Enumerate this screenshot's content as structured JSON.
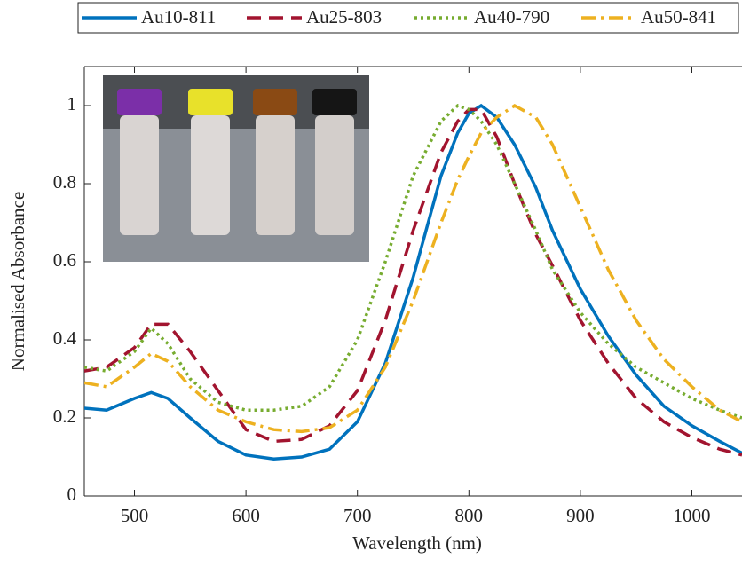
{
  "chart_data": {
    "type": "line",
    "x_label": "Wavelength (nm)",
    "y_label": "Normalised Absorbance",
    "x": [
      455,
      475,
      500,
      515,
      530,
      550,
      575,
      600,
      625,
      650,
      675,
      700,
      725,
      750,
      775,
      790,
      800,
      811,
      825,
      841,
      860,
      875,
      900,
      925,
      950,
      975,
      1000,
      1025,
      1045
    ],
    "series": [
      {
        "name": "Au10-811",
        "color": "#0072bd",
        "dash": "solid",
        "values": [
          0.225,
          0.22,
          0.25,
          0.265,
          0.25,
          0.2,
          0.14,
          0.105,
          0.095,
          0.1,
          0.12,
          0.19,
          0.34,
          0.56,
          0.82,
          0.93,
          0.98,
          1.0,
          0.97,
          0.9,
          0.79,
          0.68,
          0.53,
          0.41,
          0.31,
          0.23,
          0.18,
          0.14,
          0.11
        ]
      },
      {
        "name": "Au25-803",
        "color": "#a2142f",
        "dash": "dashed",
        "values": [
          0.32,
          0.33,
          0.38,
          0.44,
          0.44,
          0.37,
          0.27,
          0.17,
          0.14,
          0.145,
          0.18,
          0.27,
          0.45,
          0.68,
          0.88,
          0.96,
          0.99,
          0.99,
          0.92,
          0.8,
          0.67,
          0.59,
          0.45,
          0.34,
          0.25,
          0.19,
          0.15,
          0.12,
          0.105
        ]
      },
      {
        "name": "Au40-790",
        "color": "#77ac30",
        "dash": "dotted",
        "values": [
          0.33,
          0.32,
          0.37,
          0.43,
          0.39,
          0.3,
          0.24,
          0.22,
          0.22,
          0.23,
          0.28,
          0.4,
          0.6,
          0.82,
          0.96,
          1.0,
          0.99,
          0.96,
          0.9,
          0.8,
          0.68,
          0.58,
          0.47,
          0.39,
          0.33,
          0.29,
          0.25,
          0.22,
          0.2
        ]
      },
      {
        "name": "Au50-841",
        "color": "#edb120",
        "dash": "dashdot",
        "values": [
          0.29,
          0.28,
          0.33,
          0.365,
          0.345,
          0.28,
          0.22,
          0.19,
          0.17,
          0.165,
          0.175,
          0.22,
          0.33,
          0.5,
          0.7,
          0.81,
          0.87,
          0.93,
          0.97,
          1.0,
          0.97,
          0.9,
          0.74,
          0.58,
          0.45,
          0.35,
          0.28,
          0.22,
          0.19
        ]
      }
    ],
    "xlim": [
      455,
      1045
    ],
    "ylim": [
      0,
      1.1
    ],
    "xticks": [
      500,
      600,
      700,
      800,
      900,
      1000
    ],
    "yticks": [
      0,
      0.2,
      0.4,
      0.6,
      0.8,
      1
    ],
    "legend": "top"
  }
}
